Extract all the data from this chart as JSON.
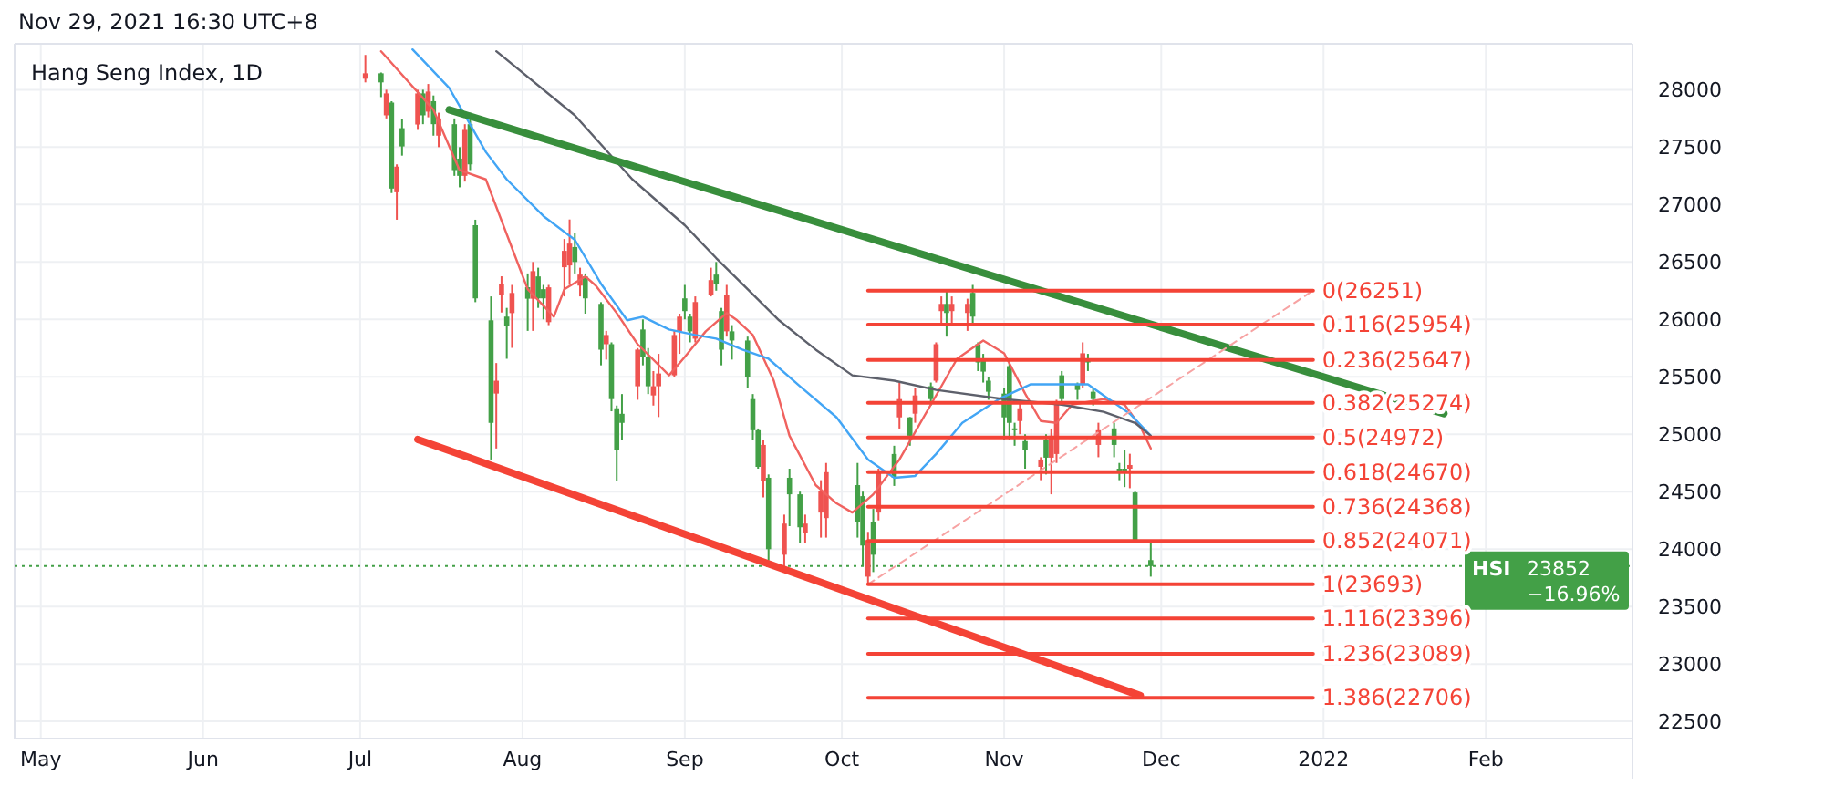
{
  "chart_data": {
    "type": "candlestick",
    "title": "Hang Seng Index, 1D",
    "subtitle": "Nov 29, 2021 16:30 UTC+8",
    "x": [
      "2021-07-02",
      "2021-07-05",
      "2021-07-06",
      "2021-07-07",
      "2021-07-08",
      "2021-07-09",
      "2021-07-12",
      "2021-07-13",
      "2021-07-14",
      "2021-07-15",
      "2021-07-16",
      "2021-07-19",
      "2021-07-20",
      "2021-07-21",
      "2021-07-22",
      "2021-07-23",
      "2021-07-26",
      "2021-07-27",
      "2021-07-28",
      "2021-07-29",
      "2021-07-30",
      "2021-08-02",
      "2021-08-03",
      "2021-08-04",
      "2021-08-05",
      "2021-08-06",
      "2021-08-09",
      "2021-08-10",
      "2021-08-11",
      "2021-08-12",
      "2021-08-13",
      "2021-08-16",
      "2021-08-17",
      "2021-08-18",
      "2021-08-19",
      "2021-08-20",
      "2021-08-23",
      "2021-08-24",
      "2021-08-25",
      "2021-08-26",
      "2021-08-27",
      "2021-08-30",
      "2021-08-31",
      "2021-09-01",
      "2021-09-02",
      "2021-09-03",
      "2021-09-06",
      "2021-09-07",
      "2021-09-08",
      "2021-09-09",
      "2021-09-10",
      "2021-09-13",
      "2021-09-14",
      "2021-09-15",
      "2021-09-16",
      "2021-09-17",
      "2021-09-20",
      "2021-09-21",
      "2021-09-23",
      "2021-09-24",
      "2021-09-27",
      "2021-09-28",
      "2021-10-04",
      "2021-10-05",
      "2021-10-06",
      "2021-10-07",
      "2021-10-08",
      "2021-10-11",
      "2021-10-12",
      "2021-10-14",
      "2021-10-15",
      "2021-10-18",
      "2021-10-19",
      "2021-10-20",
      "2021-10-21",
      "2021-10-22",
      "2021-10-25",
      "2021-10-26",
      "2021-10-27",
      "2021-10-28",
      "2021-10-29",
      "2021-11-01",
      "2021-11-02",
      "2021-11-03",
      "2021-11-04",
      "2021-11-05",
      "2021-11-08",
      "2021-11-09",
      "2021-11-10",
      "2021-11-11",
      "2021-11-12",
      "2021-11-15",
      "2021-11-16",
      "2021-11-17",
      "2021-11-18",
      "2021-11-19",
      "2021-11-22",
      "2021-11-23",
      "2021-11-24",
      "2021-11-25",
      "2021-11-26",
      "2021-11-29"
    ],
    "ohlc": [
      [
        28096,
        28303,
        28064,
        28143
      ],
      [
        28143,
        28150,
        27936,
        28064
      ],
      [
        27777,
        28000,
        27750,
        27968
      ],
      [
        27888,
        27900,
        27100,
        27139
      ],
      [
        27107,
        27350,
        26868,
        27330
      ],
      [
        27665,
        27745,
        27426,
        27506
      ],
      [
        27697,
        28000,
        27650,
        27968
      ],
      [
        27968,
        28000,
        27700,
        27777
      ],
      [
        27809,
        28050,
        27760,
        27984
      ],
      [
        27900,
        27950,
        27600,
        27700
      ],
      [
        27600,
        27800,
        27500,
        27750
      ],
      [
        27700,
        27750,
        27250,
        27300
      ],
      [
        27400,
        27500,
        27150,
        27250
      ],
      [
        27250,
        27700,
        27200,
        27650
      ],
      [
        27700,
        27800,
        27300,
        27350
      ],
      [
        26820,
        26868,
        26150,
        26183
      ],
      [
        25992,
        26200,
        24780,
        25099
      ],
      [
        25354,
        25620,
        24876,
        25466
      ],
      [
        26215,
        26375,
        26060,
        26310
      ],
      [
        26024,
        26100,
        25657,
        25944
      ],
      [
        26055,
        26300,
        25752,
        26230
      ],
      [
        26280,
        26400,
        25900,
        26180
      ],
      [
        26180,
        26500,
        25900,
        26420
      ],
      [
        26374,
        26450,
        26100,
        26183
      ],
      [
        26263,
        26300,
        26000,
        26183
      ],
      [
        25976,
        26300,
        25950,
        26279
      ],
      [
        26454,
        26700,
        26200,
        26597
      ],
      [
        26470,
        26870,
        26300,
        26660
      ],
      [
        26630,
        26750,
        26400,
        26500
      ],
      [
        26294,
        26450,
        26200,
        26390
      ],
      [
        26374,
        26400,
        26050,
        26183
      ],
      [
        26135,
        26150,
        25600,
        25736
      ],
      [
        25784,
        25900,
        25650,
        25864
      ],
      [
        25784,
        25800,
        25200,
        25306
      ],
      [
        25226,
        25250,
        24589,
        24860
      ],
      [
        25178,
        25350,
        24950,
        25099
      ],
      [
        25418,
        25750,
        25300,
        25737
      ],
      [
        25912,
        26000,
        25600,
        25673
      ],
      [
        25673,
        25750,
        25350,
        25418
      ],
      [
        25338,
        25550,
        25250,
        25418
      ],
      [
        25418,
        25700,
        25150,
        25529
      ],
      [
        25513,
        25900,
        25500,
        25864
      ],
      [
        25896,
        26050,
        25700,
        26024
      ],
      [
        26183,
        26300,
        26000,
        26072
      ],
      [
        26024,
        26050,
        25800,
        25896
      ],
      [
        25832,
        26200,
        25800,
        26151
      ],
      [
        26215,
        26450,
        26200,
        26342
      ],
      [
        26390,
        26500,
        26250,
        26310
      ],
      [
        26072,
        26100,
        25600,
        25736
      ],
      [
        25896,
        26300,
        25850,
        26215
      ],
      [
        25896,
        25950,
        25650,
        25816
      ],
      [
        25816,
        25850,
        25400,
        25497
      ],
      [
        25306,
        25350,
        24950,
        25035
      ],
      [
        25035,
        25050,
        24700,
        24716
      ],
      [
        24589,
        24950,
        24450,
        24907
      ],
      [
        24621,
        24650,
        23900,
        23999
      ],
      [
        23951,
        24300,
        23824,
        24222
      ],
      [
        24621,
        24700,
        24200,
        24477
      ],
      [
        24477,
        24500,
        24050,
        24190
      ],
      [
        24142,
        24300,
        24050,
        24222
      ],
      [
        24318,
        24600,
        24100,
        24509
      ],
      [
        24270,
        24750,
        24100,
        24670
      ],
      [
        24557,
        24750,
        24100,
        24238
      ],
      [
        24461,
        24500,
        23850,
        24031
      ],
      [
        23760,
        24150,
        23693,
        24079
      ],
      [
        24238,
        24350,
        23800,
        23951
      ],
      [
        24318,
        24700,
        24250,
        24668
      ],
      [
        24828,
        24900,
        24550,
        24621
      ],
      [
        25147,
        25450,
        25050,
        25306
      ],
      [
        25147,
        25150,
        24900,
        24987
      ],
      [
        25179,
        25400,
        25100,
        25338
      ],
      [
        25418,
        25450,
        25250,
        25306
      ],
      [
        25466,
        25800,
        25450,
        25784
      ],
      [
        26072,
        26200,
        25950,
        26135
      ],
      [
        26135,
        26250,
        25850,
        26056
      ],
      [
        26072,
        26200,
        25950,
        26135
      ],
      [
        26056,
        26180,
        25900,
        26135
      ],
      [
        26231,
        26300,
        25950,
        26024
      ],
      [
        25784,
        25800,
        25550,
        25625
      ],
      [
        25657,
        25700,
        25450,
        25545
      ],
      [
        25466,
        25500,
        25300,
        25370
      ],
      [
        25354,
        25400,
        24950,
        25147
      ],
      [
        25593,
        25650,
        24950,
        25099
      ],
      [
        25051,
        25100,
        24900,
        25035
      ],
      [
        25115,
        25280,
        25000,
        25226
      ],
      [
        24940,
        25000,
        24700,
        24860
      ],
      [
        24716,
        24800,
        24600,
        24780
      ],
      [
        24955,
        25000,
        24650,
        24796
      ],
      [
        24796,
        25050,
        24477,
        24987
      ],
      [
        24828,
        25300,
        24750,
        25258
      ],
      [
        25513,
        25550,
        25250,
        25306
      ],
      [
        25433,
        25450,
        25300,
        25386
      ],
      [
        25434,
        25800,
        25400,
        25705
      ],
      [
        25657,
        25700,
        25550,
        25625
      ],
      [
        25370,
        25400,
        25250,
        25306
      ],
      [
        24907,
        25100,
        24800,
        25035
      ],
      [
        25051,
        25100,
        24800,
        24907
      ],
      [
        24700,
        24750,
        24600,
        24668
      ],
      [
        24700,
        24860,
        24540,
        24690
      ],
      [
        24700,
        24830,
        24530,
        24732
      ],
      [
        24493,
        24500,
        24050,
        24063
      ],
      [
        23904,
        24050,
        23760,
        23852
      ]
    ],
    "colors": [
      "#ef5350",
      "#43a047",
      "#ef5350",
      "#43a047",
      "#ef5350",
      "#43a047",
      "#ef5350",
      "#43a047",
      "#ef5350",
      "#43a047",
      "#ef5350",
      "#43a047",
      "#43a047",
      "#ef5350",
      "#43a047",
      "#43a047",
      "#43a047",
      "#ef5350",
      "#ef5350",
      "#43a047",
      "#ef5350",
      "#43a047",
      "#ef5350",
      "#43a047",
      "#43a047",
      "#ef5350",
      "#ef5350",
      "#ef5350",
      "#43a047",
      "#ef5350",
      "#43a047",
      "#43a047",
      "#ef5350",
      "#43a047",
      "#43a047",
      "#43a047",
      "#ef5350",
      "#43a047",
      "#43a047",
      "#ef5350",
      "#ef5350",
      "#ef5350",
      "#ef5350",
      "#43a047",
      "#43a047",
      "#ef5350",
      "#ef5350",
      "#43a047",
      "#43a047",
      "#ef5350",
      "#43a047",
      "#43a047",
      "#43a047",
      "#43a047",
      "#ef5350",
      "#43a047",
      "#ef5350",
      "#43a047",
      "#43a047",
      "#ef5350",
      "#ef5350",
      "#ef5350",
      "#43a047",
      "#43a047",
      "#ef5350",
      "#43a047",
      "#ef5350",
      "#43a047",
      "#ef5350",
      "#43a047",
      "#ef5350",
      "#43a047",
      "#ef5350",
      "#ef5350",
      "#43a047",
      "#ef5350",
      "#ef5350",
      "#43a047",
      "#43a047",
      "#43a047",
      "#43a047",
      "#43a047",
      "#43a047",
      "#43a047",
      "#ef5350",
      "#43a047",
      "#ef5350",
      "#43a047",
      "#ef5350",
      "#ef5350",
      "#43a047",
      "#43a047",
      "#ef5350",
      "#43a047",
      "#43a047",
      "#ef5350",
      "#43a047",
      "#43a047",
      "#43a047",
      "#ef5350",
      "#43a047",
      "#43a047"
    ],
    "series": [
      {
        "type": "line",
        "color": "#f0625f",
        "x": [
          "2021-07-05",
          "2021-07-15",
          "2021-07-20",
          "2021-07-25",
          "2021-07-29",
          "2021-08-02",
          "2021-08-07",
          "2021-08-09",
          "2021-08-13",
          "2021-08-15",
          "2021-08-19",
          "2021-08-23",
          "2021-08-29",
          "2021-09-01",
          "2021-09-05",
          "2021-09-09",
          "2021-09-11",
          "2021-09-14",
          "2021-09-18",
          "2021-09-21",
          "2021-09-26",
          "2021-09-30",
          "2021-10-03",
          "2021-10-07",
          "2021-10-12",
          "2021-10-18",
          "2021-10-23",
          "2021-10-28",
          "2021-11-01",
          "2021-11-05",
          "2021-11-08",
          "2021-11-11",
          "2021-11-14",
          "2021-11-20",
          "2021-11-24",
          "2021-11-27",
          "2021-11-29"
        ],
        "values": [
          28335,
          27825,
          27299,
          27219,
          26741,
          26263,
          26023,
          26263,
          26374,
          26294,
          26055,
          25784,
          25513,
          25673,
          25896,
          26055,
          25992,
          25864,
          25466,
          24987,
          24557,
          24398,
          24318,
          24477,
          24780,
          25258,
          25657,
          25816,
          25705,
          25354,
          25115,
          25099,
          25258,
          25306,
          25258,
          25067,
          24876
        ]
      },
      {
        "type": "line",
        "color": "#42a5f5",
        "x": [
          "2021-07-11",
          "2021-07-18",
          "2021-07-25",
          "2021-07-29",
          "2021-08-05",
          "2021-08-11",
          "2021-08-16",
          "2021-08-21",
          "2021-08-24",
          "2021-08-29",
          "2021-09-03",
          "2021-09-07",
          "2021-09-12",
          "2021-09-17",
          "2021-09-23",
          "2021-09-30",
          "2021-10-06",
          "2021-10-11",
          "2021-10-15",
          "2021-10-19",
          "2021-10-24",
          "2021-10-31",
          "2021-11-06",
          "2021-11-12",
          "2021-11-17",
          "2021-11-21",
          "2021-11-25",
          "2021-11-29"
        ],
        "values": [
          28351,
          28016,
          27458,
          27219,
          26900,
          26693,
          26310,
          25992,
          26023,
          25912,
          25864,
          25832,
          25737,
          25657,
          25418,
          25147,
          24780,
          24621,
          24637,
          24828,
          25099,
          25306,
          25434,
          25434,
          25434,
          25306,
          25179,
          24987
        ]
      },
      {
        "type": "line",
        "color": "#5d606b",
        "x": [
          "2021-07-27",
          "2021-08-11",
          "2021-08-22",
          "2021-09-01",
          "2021-09-07",
          "2021-09-13",
          "2021-09-19",
          "2021-09-26",
          "2021-10-03",
          "2021-10-11",
          "2021-10-19",
          "2021-11-01",
          "2021-11-12",
          "2021-11-20",
          "2021-11-26",
          "2021-11-29"
        ],
        "values": [
          28335,
          27777,
          27219,
          26820,
          26534,
          26263,
          25992,
          25737,
          25513,
          25466,
          25386,
          25306,
          25258,
          25195,
          25099,
          24987
        ]
      },
      {
        "type": "line",
        "color": "#388e3c",
        "x": [
          "2021-07-18",
          "2022-01-24"
        ],
        "values": [
          27825,
          25179
        ]
      },
      {
        "type": "line",
        "color": "#f44336",
        "x": [
          "2021-07-12",
          "2021-11-27"
        ],
        "values": [
          24955,
          22724
        ]
      },
      {
        "type": "line",
        "color": "#f7a3a3",
        "line_style": "dashed",
        "x": [
          "2021-10-06",
          "2021-12-30"
        ],
        "values": [
          23693,
          26251
        ]
      },
      {
        "type": "line",
        "name": "0(26251)",
        "color": "#f44336",
        "x": [
          "2021-10-06",
          "2021-12-30"
        ],
        "values": [
          26251,
          26251
        ]
      },
      {
        "type": "line",
        "name": "0.116(25954)",
        "color": "#f44336",
        "x": [
          "2021-10-06",
          "2021-12-30"
        ],
        "values": [
          25954,
          25954
        ]
      },
      {
        "type": "line",
        "name": "0.236(25647)",
        "color": "#f44336",
        "x": [
          "2021-10-06",
          "2021-12-30"
        ],
        "values": [
          25647,
          25647
        ]
      },
      {
        "type": "line",
        "name": "0.382(25274)",
        "color": "#f44336",
        "x": [
          "2021-10-06",
          "2021-12-30"
        ],
        "values": [
          25274,
          25274
        ]
      },
      {
        "type": "line",
        "name": "0.5(24972)",
        "color": "#f44336",
        "x": [
          "2021-10-06",
          "2021-12-30"
        ],
        "values": [
          24972,
          24972
        ]
      },
      {
        "type": "line",
        "name": "0.618(24670)",
        "color": "#f44336",
        "x": [
          "2021-10-06",
          "2021-12-30"
        ],
        "values": [
          24670,
          24670
        ]
      },
      {
        "type": "line",
        "name": "0.736(24368)",
        "color": "#f44336",
        "x": [
          "2021-10-06",
          "2021-12-30"
        ],
        "values": [
          24368,
          24368
        ]
      },
      {
        "type": "line",
        "name": "0.852(24071)",
        "color": "#f44336",
        "x": [
          "2021-10-06",
          "2021-12-30"
        ],
        "values": [
          24071,
          24071
        ]
      },
      {
        "type": "line",
        "name": "1(23693)",
        "color": "#f44336",
        "x": [
          "2021-10-06",
          "2021-12-30"
        ],
        "values": [
          23693,
          23693
        ]
      },
      {
        "type": "line",
        "name": "1.116(23396)",
        "color": "#f44336",
        "x": [
          "2021-10-06",
          "2021-12-30"
        ],
        "values": [
          23396,
          23396
        ]
      },
      {
        "type": "line",
        "name": "1.236(23089)",
        "color": "#f44336",
        "x": [
          "2021-10-06",
          "2021-12-30"
        ],
        "values": [
          23089,
          23089
        ]
      },
      {
        "type": "line",
        "name": "1.386(22706)",
        "color": "#f44336",
        "x": [
          "2021-10-06",
          "2021-12-30"
        ],
        "values": [
          22706,
          22706
        ]
      }
    ],
    "ref_lines": [
      {
        "axis": "y",
        "value": 23852,
        "label": "HSI",
        "color": "#43a047",
        "line_style": "dotted"
      }
    ],
    "annotations": [
      "23852",
      "−16.96%"
    ],
    "xlim": [
      "2021-04-26",
      "2022-03-01"
    ],
    "ylim": [
      22350,
      28400
    ],
    "xticks": [
      {
        "value": "2021-05-01",
        "label": "May"
      },
      {
        "value": "2021-06-01",
        "label": "Jun"
      },
      {
        "value": "2021-07-01",
        "label": "Jul"
      },
      {
        "value": "2021-08-01",
        "label": "Aug"
      },
      {
        "value": "2021-09-01",
        "label": "Sep"
      },
      {
        "value": "2021-10-01",
        "label": "Oct"
      },
      {
        "value": "2021-11-01",
        "label": "Nov"
      },
      {
        "value": "2021-12-01",
        "label": "Dec"
      },
      {
        "value": "2022-01-01",
        "label": "2022"
      },
      {
        "value": "2022-02-01",
        "label": "Feb"
      }
    ],
    "yticks": [
      22500,
      23000,
      23500,
      24000,
      24500,
      25000,
      25500,
      26000,
      26500,
      27000,
      27500,
      28000
    ],
    "grid": true
  }
}
